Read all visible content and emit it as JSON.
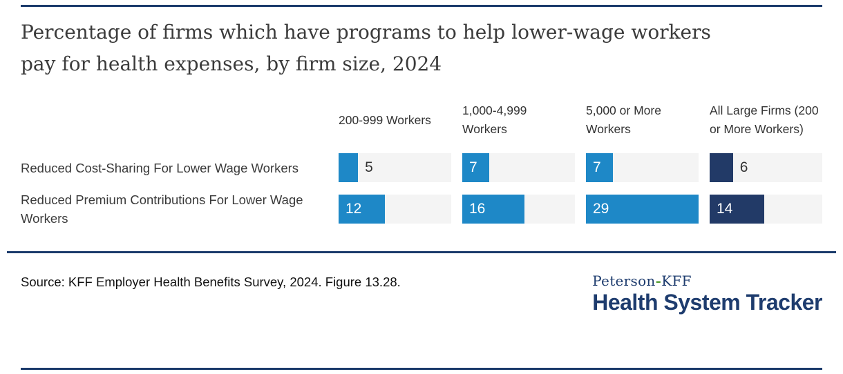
{
  "title": "Percentage of firms which have programs to help lower-wage workers pay for health expenses, by firm size, 2024",
  "chart_data": {
    "type": "bar",
    "orientation": "horizontal",
    "unit": "percent",
    "categories": [
      "200-999 Workers",
      "1,000-4,999 Workers",
      "5,000 or More Workers",
      "All Large Firms (200 or More Workers)"
    ],
    "series": [
      {
        "name": "Reduced Cost-Sharing For Lower Wage Workers",
        "values": [
          5,
          7,
          7,
          6
        ]
      },
      {
        "name": "Reduced Premium Contributions For Lower Wage Workers",
        "values": [
          12,
          16,
          29,
          14
        ]
      }
    ],
    "value_axis_max": 29,
    "bar_colors_by_category": [
      "#1e88c7",
      "#1e88c7",
      "#1e88c7",
      "#223a67"
    ],
    "track_color": "#f4f4f4",
    "legend_position": "none",
    "grid": false
  },
  "footer": {
    "source_text": "Source: KFF Employer Health Benefits Survey, 2024. Figure 13.28.",
    "logo": {
      "peterson": "Peterson",
      "hyphen": "-",
      "kff": "KFF",
      "bottom": "Health System Tracker"
    }
  },
  "colors": {
    "rule_navy": "#1a3a6b",
    "bar_blue": "#1e88c7",
    "bar_navy": "#223a67",
    "track_gray": "#f4f4f4",
    "title_text": "#3b3b3b",
    "body_text": "#333333",
    "source_text": "#111111",
    "logo_navy": "#1e3c6e",
    "logo_hyphen_green": "#5fa33e"
  }
}
